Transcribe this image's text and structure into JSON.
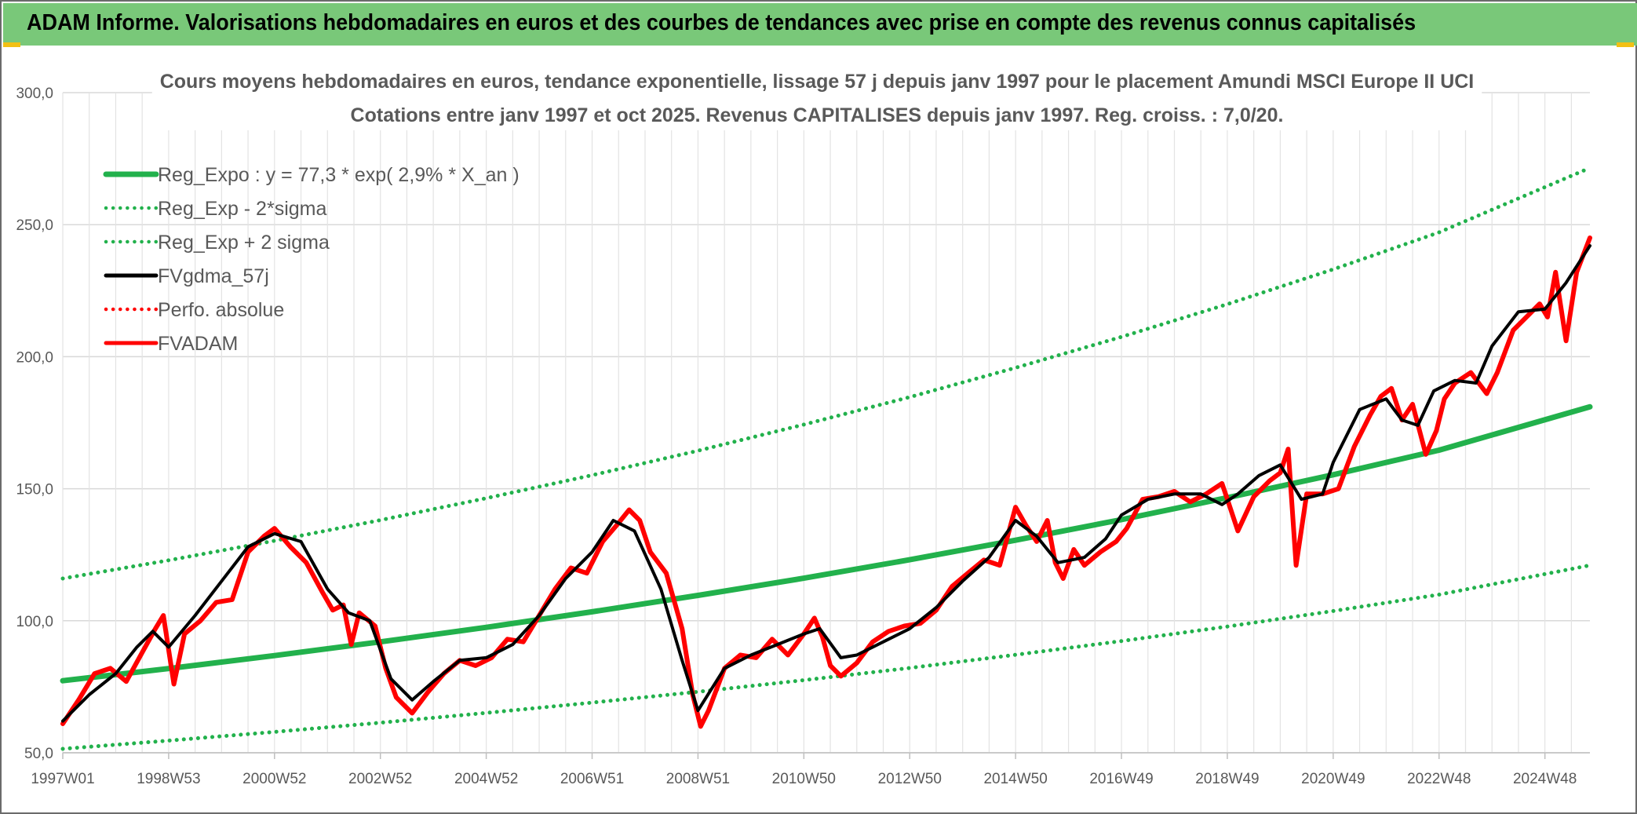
{
  "header": {
    "title": "ADAM Informe. Valorisations hebdomadaires en euros et des courbes de tendances avec prise en compte des revenus connus capitalisés"
  },
  "chart_data": {
    "type": "line",
    "title": "Cours moyens hebdomadaires en euros, tendance exponentielle, lissage 57 j depuis janv 1997 pour le placement Amundi MSCI Europe II UCI",
    "subtitle": "Cotations entre janv 1997 et oct 2025. Revenus CAPITALISES depuis janv 1997. Reg. croiss. : 7,0/20.",
    "xlabel": "",
    "ylabel": "",
    "ylim": [
      50,
      300
    ],
    "yticks": [
      "50,0",
      "100,0",
      "150,0",
      "200,0",
      "250,0",
      "300,0"
    ],
    "xlim": [
      1997.0,
      2025.85
    ],
    "xticks": [
      {
        "label": "1997W01",
        "x": 1997.0
      },
      {
        "label": "1998W53",
        "x": 1999.0
      },
      {
        "label": "2000W52",
        "x": 2001.0
      },
      {
        "label": "2002W52",
        "x": 2003.0
      },
      {
        "label": "2004W52",
        "x": 2005.0
      },
      {
        "label": "2006W51",
        "x": 2007.0
      },
      {
        "label": "2008W51",
        "x": 2009.0
      },
      {
        "label": "2010W50",
        "x": 2011.0
      },
      {
        "label": "2012W50",
        "x": 2013.0
      },
      {
        "label": "2014W50",
        "x": 2015.0
      },
      {
        "label": "2016W49",
        "x": 2017.0
      },
      {
        "label": "2018W49",
        "x": 2019.0
      },
      {
        "label": "2020W49",
        "x": 2021.0
      },
      {
        "label": "2022W48",
        "x": 2023.0
      },
      {
        "label": "2024W48",
        "x": 2025.0
      }
    ],
    "grid": true,
    "legend_position": "top-left",
    "series": [
      {
        "name": "Reg_Expo : y = 77,3 * exp( 2,9% *  X_an )",
        "color": "#22b14c",
        "style": "solid",
        "width": 7,
        "x": [
          1997.0,
          1999.0,
          2001.0,
          2003.0,
          2005.0,
          2007.0,
          2009.0,
          2011.0,
          2013.0,
          2015.0,
          2017.0,
          2019.0,
          2021.0,
          2023.0,
          2025.85
        ],
        "y": [
          77.3,
          81.9,
          86.8,
          92.0,
          97.5,
          103.4,
          109.6,
          116.1,
          123.1,
          130.5,
          138.3,
          146.6,
          155.3,
          164.6,
          181.0
        ]
      },
      {
        "name": "Reg_Exp - 2*sigma",
        "color": "#22b14c",
        "style": "dotted",
        "width": 5,
        "x": [
          1997.0,
          1999.0,
          2001.0,
          2003.0,
          2005.0,
          2007.0,
          2009.0,
          2011.0,
          2013.0,
          2015.0,
          2017.0,
          2019.0,
          2021.0,
          2023.0,
          2025.85
        ],
        "y": [
          51.5,
          54.6,
          57.9,
          61.4,
          65.1,
          69.0,
          73.1,
          77.5,
          82.1,
          87.1,
          92.3,
          97.8,
          103.7,
          109.9,
          121.0
        ]
      },
      {
        "name": "Reg_Exp + 2 sigma",
        "color": "#22b14c",
        "style": "dotted",
        "width": 5,
        "x": [
          1997.0,
          1999.0,
          2001.0,
          2003.0,
          2005.0,
          2007.0,
          2009.0,
          2011.0,
          2013.0,
          2015.0,
          2017.0,
          2019.0,
          2021.0,
          2023.0,
          2025.85
        ],
        "y": [
          116.0,
          122.9,
          130.3,
          138.1,
          146.4,
          155.1,
          164.4,
          174.3,
          184.7,
          195.8,
          207.5,
          219.9,
          233.1,
          247.1,
          271.5
        ]
      },
      {
        "name": "FVgdma_57j",
        "color": "#000000",
        "style": "solid",
        "width": 4,
        "x": [
          1997.0,
          1997.5,
          1998.0,
          1998.4,
          1998.7,
          1999.0,
          1999.5,
          2000.0,
          2000.5,
          2001.0,
          2001.5,
          2002.0,
          2002.4,
          2002.8,
          2003.2,
          2003.6,
          2004.0,
          2004.5,
          2005.0,
          2005.5,
          2006.0,
          2006.5,
          2007.0,
          2007.4,
          2007.8,
          2008.3,
          2008.7,
          2009.0,
          2009.5,
          2010.0,
          2010.5,
          2011.0,
          2011.3,
          2011.7,
          2012.0,
          2012.5,
          2013.0,
          2013.5,
          2014.0,
          2014.5,
          2015.0,
          2015.4,
          2015.8,
          2016.3,
          2016.7,
          2017.0,
          2017.5,
          2018.0,
          2018.5,
          2018.9,
          2019.2,
          2019.6,
          2020.0,
          2020.4,
          2020.8,
          2021.0,
          2021.5,
          2022.0,
          2022.3,
          2022.6,
          2022.9,
          2023.3,
          2023.7,
          2024.0,
          2024.5,
          2025.0,
          2025.4,
          2025.85
        ],
        "y": [
          62,
          72,
          80,
          90,
          96,
          90,
          102,
          115,
          128,
          133,
          130,
          112,
          103,
          100,
          78,
          70,
          77,
          85,
          86,
          91,
          102,
          116,
          126,
          138,
          134,
          112,
          85,
          66,
          82,
          87,
          91,
          95,
          97,
          86,
          87,
          92,
          97,
          105,
          115,
          124,
          138,
          132,
          122,
          124,
          131,
          140,
          146,
          148,
          148,
          144,
          148,
          155,
          159,
          146,
          148,
          160,
          180,
          184,
          176,
          174,
          187,
          191,
          190,
          204,
          217,
          218,
          228,
          242
        ]
      },
      {
        "name": "Perfo. absolue",
        "color": "#ff0000",
        "style": "dotted",
        "width": 4,
        "x": [],
        "y": []
      },
      {
        "name": "FVADAM",
        "color": "#ff0000",
        "style": "solid",
        "width": 6,
        "x": [
          1997.0,
          1997.3,
          1997.6,
          1997.9,
          1998.2,
          1998.5,
          1998.75,
          1998.9,
          1999.1,
          1999.3,
          1999.6,
          1999.9,
          2000.2,
          2000.5,
          2000.8,
          2001.0,
          2001.3,
          2001.6,
          2001.9,
          2002.1,
          2002.3,
          2002.45,
          2002.6,
          2002.9,
          2003.1,
          2003.3,
          2003.6,
          2003.9,
          2004.2,
          2004.5,
          2004.8,
          2005.1,
          2005.4,
          2005.7,
          2006.0,
          2006.3,
          2006.6,
          2006.9,
          2007.2,
          2007.5,
          2007.7,
          2007.9,
          2008.1,
          2008.4,
          2008.7,
          2008.9,
          2009.05,
          2009.2,
          2009.5,
          2009.8,
          2010.1,
          2010.4,
          2010.7,
          2011.0,
          2011.2,
          2011.35,
          2011.5,
          2011.7,
          2012.0,
          2012.3,
          2012.6,
          2012.9,
          2013.2,
          2013.5,
          2013.8,
          2014.1,
          2014.4,
          2014.7,
          2015.0,
          2015.2,
          2015.4,
          2015.6,
          2015.75,
          2015.9,
          2016.1,
          2016.3,
          2016.6,
          2016.9,
          2017.1,
          2017.4,
          2017.7,
          2018.0,
          2018.3,
          2018.6,
          2018.9,
          2019.0,
          2019.2,
          2019.5,
          2019.8,
          2020.0,
          2020.15,
          2020.3,
          2020.5,
          2020.8,
          2021.1,
          2021.4,
          2021.7,
          2021.9,
          2022.1,
          2022.3,
          2022.5,
          2022.75,
          2022.95,
          2023.1,
          2023.3,
          2023.6,
          2023.9,
          2024.1,
          2024.4,
          2024.7,
          2024.9,
          2025.05,
          2025.2,
          2025.4,
          2025.6,
          2025.85
        ],
        "y": [
          61,
          70,
          80,
          82,
          77,
          88,
          97,
          102,
          76,
          95,
          100,
          107,
          108,
          126,
          132,
          135,
          128,
          122,
          111,
          104,
          106,
          91,
          103,
          98,
          82,
          71,
          65,
          73,
          80,
          85,
          83,
          86,
          93,
          92,
          102,
          112,
          120,
          118,
          130,
          137,
          142,
          138,
          126,
          118,
          97,
          72,
          60,
          66,
          82,
          87,
          86,
          93,
          87,
          95,
          101,
          94,
          83,
          79,
          84,
          92,
          96,
          98,
          99,
          104,
          113,
          118,
          123,
          121,
          143,
          136,
          130,
          138,
          122,
          116,
          127,
          121,
          126,
          130,
          135,
          146,
          147,
          149,
          145,
          148,
          152,
          146,
          134,
          147,
          153,
          156,
          165,
          121,
          148,
          148,
          150,
          166,
          178,
          185,
          188,
          176,
          182,
          163,
          172,
          184,
          190,
          194,
          186,
          194,
          210,
          216,
          220,
          215,
          232,
          206,
          232,
          245
        ]
      }
    ]
  }
}
